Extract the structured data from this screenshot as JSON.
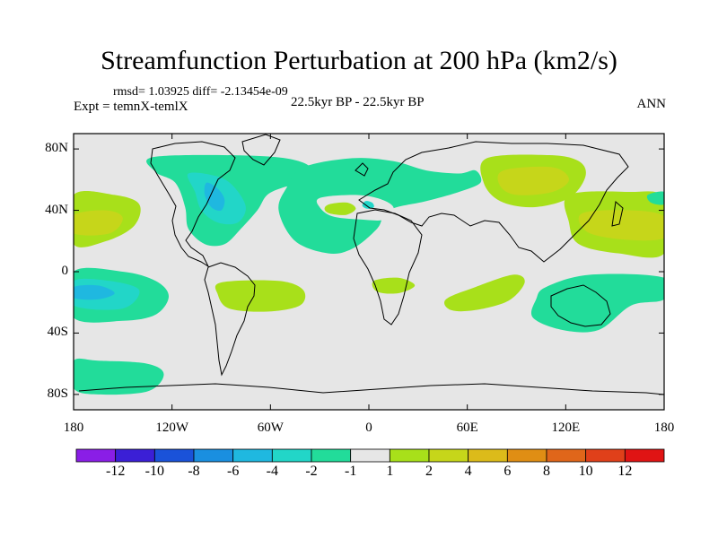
{
  "chart_data": {
    "type": "map-contour",
    "title": "Streamfunction Perturbation at 200 hPa (km2/s)",
    "left_info": "rmsd= 1.03925  diff= -2.13454e-09",
    "left_string": "Expt = temnX-temlX",
    "center_string": "22.5kyr BP - 22.5kyr BP",
    "right_string": "ANN",
    "xlim": [
      -180,
      180
    ],
    "ylim": [
      -90,
      90
    ],
    "x_ticks": [
      {
        "value": -180,
        "label": "180"
      },
      {
        "value": -120,
        "label": "120W"
      },
      {
        "value": -60,
        "label": "60W"
      },
      {
        "value": 0,
        "label": "0"
      },
      {
        "value": 60,
        "label": "60E"
      },
      {
        "value": 120,
        "label": "120E"
      },
      {
        "value": 180,
        "label": "180"
      }
    ],
    "y_ticks": [
      {
        "value": 80,
        "label": "80N"
      },
      {
        "value": 40,
        "label": "40N"
      },
      {
        "value": 0,
        "label": "0"
      },
      {
        "value": -40,
        "label": "40S"
      },
      {
        "value": -80,
        "label": "80S"
      }
    ],
    "colorbar": {
      "labels": [
        "-12",
        "-10",
        "-8",
        "-6",
        "-4",
        "-2",
        "-1",
        "1",
        "2",
        "4",
        "6",
        "8",
        "10",
        "12"
      ],
      "colors": [
        "#8a1ee6",
        "#3b1fd6",
        "#1a52d9",
        "#1a8fe0",
        "#1fb8e0",
        "#22d6c8",
        "#22dc9a",
        "#e6e6e6",
        "#a8e01a",
        "#c6d61a",
        "#dcbb1a",
        "#e08e14",
        "#e0661a",
        "#e0401a",
        "#e01414"
      ]
    },
    "regions": [
      {
        "name": "n-pacific-north-america-negative",
        "color": "#22dc9a",
        "points": [
          [
            -130,
            75
          ],
          [
            -60,
            75
          ],
          [
            -35,
            68
          ],
          [
            -40,
            58
          ],
          [
            -52,
            55
          ],
          [
            -62,
            50
          ],
          [
            -68,
            40
          ],
          [
            -78,
            28
          ],
          [
            -88,
            18
          ],
          [
            -100,
            18
          ],
          [
            -110,
            28
          ],
          [
            -112,
            42
          ],
          [
            -118,
            58
          ],
          [
            -130,
            65
          ]
        ]
      },
      {
        "name": "north-america-core",
        "color": "#22d6c8",
        "points": [
          [
            -110,
            64
          ],
          [
            -92,
            62
          ],
          [
            -82,
            55
          ],
          [
            -75,
            42
          ],
          [
            -80,
            32
          ],
          [
            -92,
            32
          ],
          [
            -102,
            40
          ],
          [
            -106,
            52
          ]
        ]
      },
      {
        "name": "north-america-core-2",
        "color": "#1fb8e0",
        "points": [
          [
            -99,
            58
          ],
          [
            -92,
            54
          ],
          [
            -88,
            47
          ],
          [
            -90,
            40
          ],
          [
            -96,
            42
          ],
          [
            -100,
            50
          ]
        ]
      },
      {
        "name": "atlantic-eurasia-arc-negative",
        "color": "#22dc9a",
        "points": [
          [
            -40,
            68
          ],
          [
            -10,
            74
          ],
          [
            15,
            72
          ],
          [
            35,
            66
          ],
          [
            55,
            64
          ],
          [
            65,
            66
          ],
          [
            68,
            58
          ],
          [
            55,
            52
          ],
          [
            35,
            46
          ],
          [
            12,
            40
          ],
          [
            5,
            28
          ],
          [
            -10,
            15
          ],
          [
            -25,
            12
          ],
          [
            -45,
            20
          ],
          [
            -55,
            40
          ],
          [
            -50,
            55
          ]
        ]
      },
      {
        "name": "atlantic-arc-hole",
        "color": "#e6e6e6",
        "points": [
          [
            -30,
            48
          ],
          [
            -10,
            50
          ],
          [
            5,
            48
          ],
          [
            15,
            42
          ],
          [
            10,
            34
          ],
          [
            -5,
            34
          ],
          [
            -22,
            36
          ],
          [
            -30,
            42
          ]
        ]
      },
      {
        "name": "atlantic-hole-positive",
        "color": "#a8e01a",
        "points": [
          [
            -24,
            44
          ],
          [
            -13,
            45
          ],
          [
            -8,
            41
          ],
          [
            -14,
            37
          ],
          [
            -24,
            38
          ],
          [
            -27,
            41
          ]
        ]
      },
      {
        "name": "mediterranean-spot",
        "color": "#22d6c8",
        "points": [
          [
            -2,
            46
          ],
          [
            2,
            45
          ],
          [
            3,
            42
          ],
          [
            -1,
            41
          ],
          [
            -4,
            43
          ]
        ]
      },
      {
        "name": "north-pacific-positive",
        "color": "#a8e01a",
        "points": [
          [
            -180,
            50
          ],
          [
            -155,
            50
          ],
          [
            -140,
            44
          ],
          [
            -143,
            30
          ],
          [
            -160,
            20
          ],
          [
            -180,
            18
          ]
        ]
      },
      {
        "name": "north-pacific-positive-core",
        "color": "#c6d61a",
        "points": [
          [
            -180,
            37
          ],
          [
            -160,
            40
          ],
          [
            -150,
            35
          ],
          [
            -158,
            25
          ],
          [
            -180,
            25
          ]
        ]
      },
      {
        "name": "siberia-positive",
        "color": "#a8e01a",
        "points": [
          [
            72,
            74
          ],
          [
            110,
            76
          ],
          [
            128,
            72
          ],
          [
            132,
            62
          ],
          [
            122,
            48
          ],
          [
            100,
            42
          ],
          [
            80,
            46
          ],
          [
            70,
            58
          ]
        ]
      },
      {
        "name": "siberia-positive-core",
        "color": "#c6d61a",
        "points": [
          [
            82,
            66
          ],
          [
            112,
            68
          ],
          [
            122,
            60
          ],
          [
            112,
            52
          ],
          [
            90,
            50
          ],
          [
            80,
            56
          ]
        ]
      },
      {
        "name": "west-pacific-positive",
        "color": "#a8e01a",
        "points": [
          [
            122,
            50
          ],
          [
            158,
            52
          ],
          [
            180,
            48
          ],
          [
            180,
            12
          ],
          [
            152,
            12
          ],
          [
            128,
            18
          ],
          [
            122,
            32
          ]
        ]
      },
      {
        "name": "west-pacific-positive-core",
        "color": "#c6d61a",
        "points": [
          [
            130,
            38
          ],
          [
            160,
            40
          ],
          [
            180,
            36
          ],
          [
            180,
            22
          ],
          [
            155,
            21
          ],
          [
            133,
            26
          ]
        ]
      },
      {
        "name": "ne-corner-negative",
        "color": "#22dc9a",
        "points": [
          [
            170,
            50
          ],
          [
            180,
            52
          ],
          [
            180,
            44
          ],
          [
            172,
            45
          ]
        ]
      },
      {
        "name": "tropical-pacific-negative",
        "color": "#22dc9a",
        "points": [
          [
            -180,
            0
          ],
          [
            -150,
            0
          ],
          [
            -130,
            -6
          ],
          [
            -122,
            -16
          ],
          [
            -130,
            -28
          ],
          [
            -150,
            -32
          ],
          [
            -180,
            -30
          ]
        ]
      },
      {
        "name": "tropical-pacific-core",
        "color": "#22d6c8",
        "points": [
          [
            -180,
            -6
          ],
          [
            -158,
            -6
          ],
          [
            -140,
            -12
          ],
          0,
          [
            -150,
            -24
          ],
          [
            -180,
            -22
          ]
        ]
      },
      {
        "name": "tropical-pacific-core-2",
        "color": "#1fb8e0",
        "points": [
          [
            -180,
            -10
          ],
          [
            -165,
            -9
          ],
          [
            -155,
            -14
          ],
          [
            -165,
            -18
          ],
          [
            -180,
            -17
          ]
        ]
      },
      {
        "name": "south-atlantic-positive",
        "color": "#a8e01a",
        "points": [
          [
            -90,
            -7
          ],
          [
            -55,
            -6
          ],
          [
            -40,
            -12
          ],
          [
            -42,
            -22
          ],
          [
            -62,
            -26
          ],
          [
            -85,
            -24
          ],
          [
            -92,
            -15
          ]
        ]
      },
      {
        "name": "africa-positive",
        "color": "#a8e01a",
        "points": [
          [
            3,
            -6
          ],
          [
            18,
            -4
          ],
          [
            28,
            -9
          ],
          [
            18,
            -14
          ],
          [
            5,
            -13
          ]
        ]
      },
      {
        "name": "indian-ocean-positive",
        "color": "#a8e01a",
        "points": [
          [
            47,
            -18
          ],
          [
            65,
            -10
          ],
          [
            88,
            -2
          ],
          [
            95,
            -7
          ],
          [
            85,
            -19
          ],
          [
            65,
            -25
          ],
          [
            50,
            -25
          ]
        ]
      },
      {
        "name": "australia-negative",
        "color": "#22dc9a",
        "points": [
          [
            108,
            -10
          ],
          [
            135,
            -2
          ],
          [
            180,
            -4
          ],
          [
            180,
            -18
          ],
          [
            160,
            -22
          ],
          [
            140,
            -38
          ],
          [
            118,
            -38
          ],
          [
            100,
            -30
          ],
          [
            102,
            -18
          ]
        ]
      },
      {
        "name": "south-pacific-negative",
        "color": "#22dc9a",
        "points": [
          [
            -180,
            -58
          ],
          [
            -165,
            -58
          ],
          [
            -135,
            -60
          ],
          [
            -125,
            -67
          ],
          [
            -135,
            -78
          ],
          [
            -165,
            -80
          ],
          [
            -180,
            -76
          ]
        ]
      }
    ]
  }
}
